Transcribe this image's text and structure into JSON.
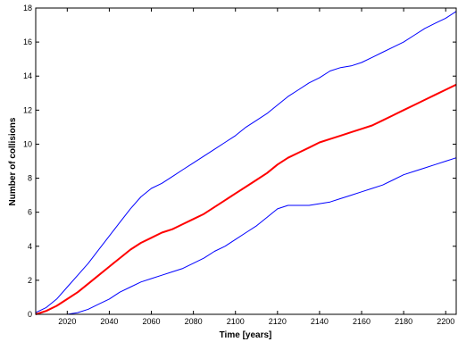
{
  "chart_data": {
    "type": "line",
    "title": "",
    "xlabel": "Time [years]",
    "ylabel": "Number of collisions",
    "xlim": [
      2005,
      2205
    ],
    "ylim": [
      0,
      18
    ],
    "xticks": [
      2020,
      2040,
      2060,
      2080,
      2100,
      2120,
      2140,
      2160,
      2180,
      2200
    ],
    "yticks": [
      0,
      2,
      4,
      6,
      8,
      10,
      12,
      14,
      16,
      18
    ],
    "grid": false,
    "legend": "none",
    "series": [
      {
        "color": "#0000ff",
        "line_width": 1,
        "x": [
          2005,
          2010,
          2015,
          2020,
          2025,
          2030,
          2035,
          2040,
          2045,
          2050,
          2055,
          2060,
          2065,
          2070,
          2075,
          2080,
          2085,
          2090,
          2095,
          2100,
          2105,
          2110,
          2115,
          2120,
          2125,
          2130,
          2135,
          2140,
          2145,
          2150,
          2155,
          2160,
          2165,
          2170,
          2175,
          2180,
          2185,
          2190,
          2195,
          2200,
          2205
        ],
        "y": [
          0.1,
          0.4,
          0.9,
          1.6,
          2.3,
          3.0,
          3.8,
          4.6,
          5.4,
          6.2,
          6.9,
          7.4,
          7.7,
          8.1,
          8.5,
          8.9,
          9.3,
          9.7,
          10.1,
          10.5,
          11.0,
          11.4,
          11.8,
          12.3,
          12.8,
          13.2,
          13.6,
          13.9,
          14.3,
          14.5,
          14.6,
          14.8,
          15.1,
          15.4,
          15.7,
          16.0,
          16.4,
          16.8,
          17.1,
          17.4,
          17.8
        ]
      },
      {
        "color": "#ff0000",
        "line_width": 2,
        "x": [
          2005,
          2010,
          2015,
          2020,
          2025,
          2030,
          2035,
          2040,
          2045,
          2050,
          2055,
          2060,
          2065,
          2070,
          2075,
          2080,
          2085,
          2090,
          2095,
          2100,
          2105,
          2110,
          2115,
          2120,
          2125,
          2130,
          2135,
          2140,
          2145,
          2150,
          2155,
          2160,
          2165,
          2170,
          2175,
          2180,
          2185,
          2190,
          2195,
          2200,
          2205
        ],
        "y": [
          0.0,
          0.2,
          0.5,
          0.9,
          1.3,
          1.8,
          2.3,
          2.8,
          3.3,
          3.8,
          4.2,
          4.5,
          4.8,
          5.0,
          5.3,
          5.6,
          5.9,
          6.3,
          6.7,
          7.1,
          7.5,
          7.9,
          8.3,
          8.8,
          9.2,
          9.5,
          9.8,
          10.1,
          10.3,
          10.5,
          10.7,
          10.9,
          11.1,
          11.4,
          11.7,
          12.0,
          12.3,
          12.6,
          12.9,
          13.2,
          13.5
        ]
      },
      {
        "color": "#0000ff",
        "line_width": 1,
        "x": [
          2005,
          2010,
          2015,
          2020,
          2025,
          2030,
          2035,
          2040,
          2045,
          2050,
          2055,
          2060,
          2065,
          2070,
          2075,
          2080,
          2085,
          2090,
          2095,
          2100,
          2105,
          2110,
          2115,
          2120,
          2125,
          2130,
          2135,
          2140,
          2145,
          2150,
          2155,
          2160,
          2165,
          2170,
          2175,
          2180,
          2185,
          2190,
          2195,
          2200,
          2205
        ],
        "y": [
          0.0,
          0.0,
          0.0,
          0.0,
          0.1,
          0.3,
          0.6,
          0.9,
          1.3,
          1.6,
          1.9,
          2.1,
          2.3,
          2.5,
          2.7,
          3.0,
          3.3,
          3.7,
          4.0,
          4.4,
          4.8,
          5.2,
          5.7,
          6.2,
          6.4,
          6.4,
          6.4,
          6.5,
          6.6,
          6.8,
          7.0,
          7.2,
          7.4,
          7.6,
          7.9,
          8.2,
          8.4,
          8.6,
          8.8,
          9.0,
          9.2
        ]
      }
    ]
  }
}
